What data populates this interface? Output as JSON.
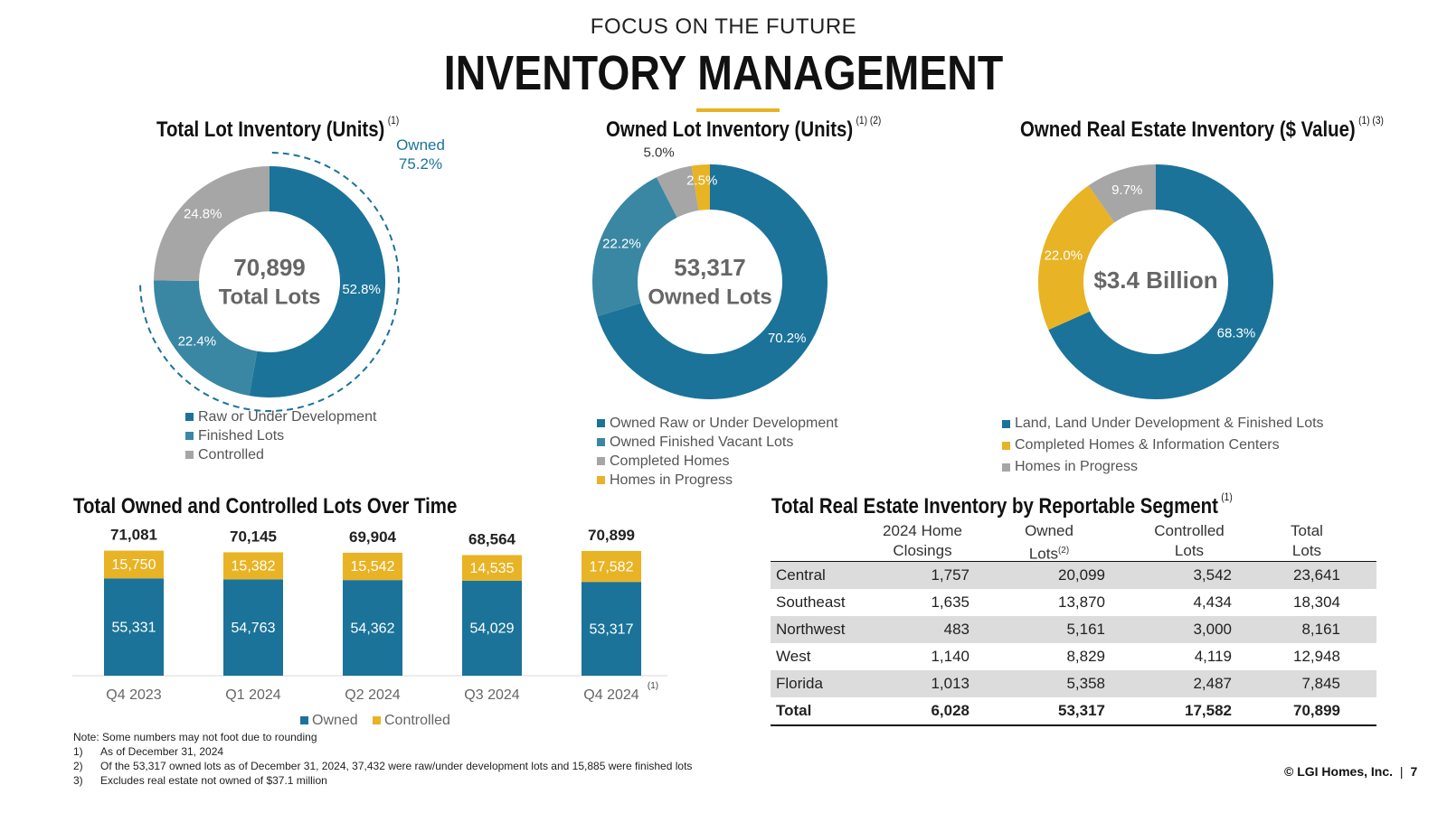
{
  "header": {
    "subtitle": "FOCUS ON THE FUTURE",
    "title": "INVENTORY MANAGEMENT"
  },
  "colors": {
    "primary": "#1B7399",
    "secondary": "#3987A3",
    "gray": "#A6A6A6",
    "gold": "#E8B324",
    "shade": "#DCDCDC"
  },
  "chart_data": [
    {
      "type": "pie",
      "title": "Total Lot Inventory (Units)",
      "footnote": "(1)",
      "center_value": "70,899",
      "center_label": "Total Lots",
      "callout_label": "Owned",
      "callout_value": "75.2%",
      "slices": [
        {
          "label": "Raw or Under Development",
          "value": 52.8,
          "display": "52.8%",
          "color": "#1B7399"
        },
        {
          "label": "Finished Lots",
          "value": 22.4,
          "display": "22.4%",
          "color": "#3987A3"
        },
        {
          "label": "Controlled",
          "value": 24.8,
          "display": "24.8%",
          "color": "#A6A6A6"
        }
      ]
    },
    {
      "type": "pie",
      "title": "Owned Lot Inventory (Units)",
      "footnote": "(1) (2)",
      "center_value": "53,317",
      "center_label": "Owned Lots",
      "slices": [
        {
          "label": "Owned Raw or Under Development",
          "value": 70.2,
          "display": "70.2%",
          "color": "#1B7399"
        },
        {
          "label": "Owned Finished Vacant Lots",
          "value": 22.2,
          "display": "22.2%",
          "color": "#3987A3"
        },
        {
          "label": "Completed Homes",
          "value": 5.0,
          "display": "5.0%",
          "color": "#A6A6A6"
        },
        {
          "label": "Homes in Progress",
          "value": 2.5,
          "display": "2.5%",
          "color": "#E8B324"
        }
      ]
    },
    {
      "type": "pie",
      "title": "Owned Real Estate Inventory ($ Value)",
      "footnote": "(1) (3)",
      "center_value": "$3.4 Billion",
      "slices": [
        {
          "label": "Land, Land Under Development & Finished Lots",
          "value": 68.3,
          "display": "68.3%",
          "color": "#1B7399"
        },
        {
          "label": "Completed Homes & Information Centers",
          "value": 22.0,
          "display": "22.0%",
          "color": "#E8B324"
        },
        {
          "label": "Homes in Progress",
          "value": 9.7,
          "display": "9.7%",
          "color": "#A6A6A6"
        }
      ]
    },
    {
      "type": "bar",
      "stacked": true,
      "title": "Total Owned and Controlled Lots Over Time",
      "categories": [
        "Q4 2023",
        "Q1 2024",
        "Q2 2024",
        "Q3 2024",
        "Q4 2024"
      ],
      "category_footnote": "(1)",
      "series": [
        {
          "name": "Owned",
          "color": "#1B7399",
          "values": [
            55331,
            54763,
            54362,
            54029,
            53317
          ],
          "labels": [
            "55,331",
            "54,763",
            "54,362",
            "54,029",
            "53,317"
          ]
        },
        {
          "name": "Controlled",
          "color": "#E8B324",
          "values": [
            15750,
            15382,
            15542,
            14535,
            17582
          ],
          "labels": [
            "15,750",
            "15,382",
            "15,542",
            "14,535",
            "17,582"
          ]
        }
      ],
      "totals": [
        "71,081",
        "70,145",
        "69,904",
        "68,564",
        "70,899"
      ],
      "ylim": [
        0,
        80000
      ]
    },
    {
      "type": "table",
      "title": "Total Real Estate Inventory by Reportable Segment",
      "footnote": "(1)",
      "headers": [
        {
          "line1": "2024 Home",
          "line2": "Closings",
          "sup": ""
        },
        {
          "line1": "Owned",
          "line2": "Lots",
          "sup": "(2)"
        },
        {
          "line1": "Controlled",
          "line2": "Lots",
          "sup": ""
        },
        {
          "line1": "Total",
          "line2": "Lots",
          "sup": ""
        }
      ],
      "rows": [
        [
          "Central",
          "1,757",
          "20,099",
          "3,542",
          "23,641"
        ],
        [
          "Southeast",
          "1,635",
          "13,870",
          "4,434",
          "18,304"
        ],
        [
          "Northwest",
          "483",
          "5,161",
          "3,000",
          "8,161"
        ],
        [
          "West",
          "1,140",
          "8,829",
          "4,119",
          "12,948"
        ],
        [
          "Florida",
          "1,013",
          "5,358",
          "2,487",
          "7,845"
        ]
      ],
      "total_row": [
        "Total",
        "6,028",
        "53,317",
        "17,582",
        "70,899"
      ]
    }
  ],
  "notes": {
    "intro": "Note: Some numbers may not foot due to rounding",
    "items": [
      {
        "n": "1)",
        "text": "As of December 31, 2024"
      },
      {
        "n": "2)",
        "text": "Of the 53,317 owned lots as of December 31, 2024, 37,432 were raw/under development lots and 15,885 were finished lots"
      },
      {
        "n": "3)",
        "text": "Excludes real estate not owned of $37.1 million"
      }
    ]
  },
  "footer": {
    "copyright": "© LGI Homes, Inc.",
    "separator": "|",
    "page": "7"
  }
}
